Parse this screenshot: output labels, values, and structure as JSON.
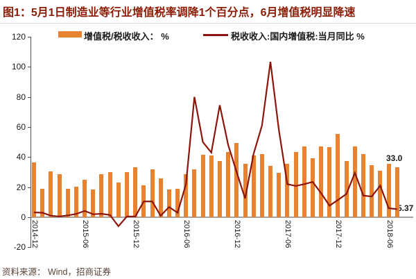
{
  "header": {
    "title": "图1：5月1日制造业等行业增值税率调降1个百分点，6月增值税明显降速"
  },
  "footer": {
    "source": "资料来源： Wind，招商证券"
  },
  "colors": {
    "title": "#8c1b06",
    "bar": "#e8822f",
    "line": "#8b150b",
    "annotation": "#1a1a1a"
  },
  "chart_data": {
    "type": "bar+line combo",
    "title": "图1：5月1日制造业等行业增值税率调降1个百分点，6月增值税明显降速",
    "grid": false,
    "legend_position": "top",
    "ylim": [
      -20,
      120
    ],
    "y_ticks": [
      120,
      100,
      80,
      60,
      40,
      20,
      0,
      -20
    ],
    "x_tick_labels": [
      "2014-12",
      "2015-06",
      "2015-12",
      "2016-06",
      "2016-12",
      "2017-06",
      "2017-12",
      "2018-06"
    ],
    "x_tick_indices": [
      0,
      6,
      12,
      18,
      24,
      30,
      36,
      42
    ],
    "months": [
      "2014-12",
      "2015-01",
      "2015-02",
      "2015-03",
      "2015-04",
      "2015-05",
      "2015-06",
      "2015-07",
      "2015-08",
      "2015-09",
      "2015-10",
      "2015-11",
      "2015-12",
      "2016-01",
      "2016-02",
      "2016-03",
      "2016-04",
      "2016-05",
      "2016-06",
      "2016-07",
      "2016-08",
      "2016-09",
      "2016-10",
      "2016-11",
      "2016-12",
      "2017-01",
      "2017-02",
      "2017-03",
      "2017-04",
      "2017-05",
      "2017-06",
      "2017-07",
      "2017-08",
      "2017-09",
      "2017-10",
      "2017-11",
      "2017-12",
      "2018-01",
      "2018-02",
      "2018-03",
      "2018-04",
      "2018-05",
      "2018-06",
      "2018-07"
    ],
    "series": [
      {
        "name": "增值税/税收收入： %",
        "type": "bar",
        "values": [
          36.5,
          19,
          30.5,
          28.5,
          19,
          20.5,
          25,
          18.5,
          28.5,
          30,
          23,
          30,
          33,
          21,
          32,
          26,
          18.5,
          19,
          28.5,
          32,
          41.5,
          41,
          37.5,
          43.5,
          49.5,
          35.5,
          41,
          42,
          34,
          29.5,
          35.5,
          43.5,
          47,
          39,
          47,
          46.5,
          55.5,
          37.5,
          47,
          42,
          34.5,
          31,
          35.5,
          33.0
        ]
      },
      {
        "name": "税收收入:国内增值税:当月同比 %",
        "type": "line",
        "values": [
          3.2,
          3.0,
          1.0,
          0.5,
          1.2,
          2.2,
          4.2,
          2.0,
          2.3,
          1.5,
          -6.0,
          0.5,
          0.5,
          10.5,
          10.5,
          1.0,
          6.8,
          3.0,
          22.0,
          80.0,
          50.0,
          43.0,
          74.5,
          48.0,
          30.0,
          12.5,
          42.0,
          61.0,
          103.4,
          58.0,
          22.0,
          20.8,
          22.0,
          23.5,
          16.0,
          7.7,
          11.5,
          15.5,
          29.5,
          14.4,
          13.8,
          21.0,
          6.0,
          5.37
        ]
      }
    ],
    "annotations": [
      {
        "text": "33.0",
        "series": "bar",
        "month": "2018-07"
      },
      {
        "text": "5.37",
        "series": "line",
        "month": "2018-07"
      }
    ]
  }
}
